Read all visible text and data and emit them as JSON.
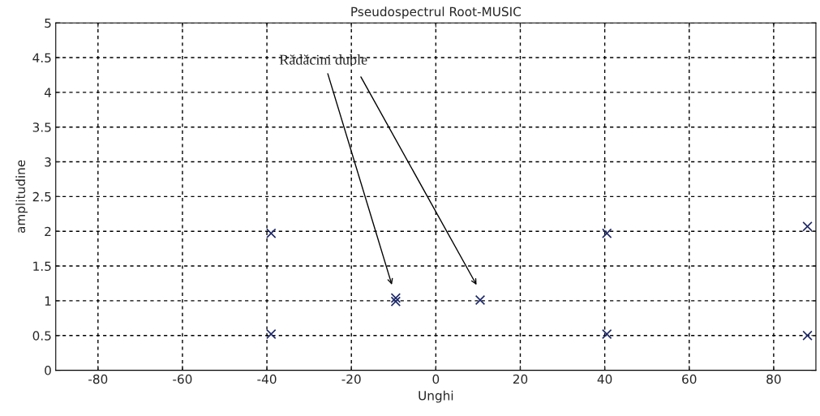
{
  "chart_data": {
    "type": "scatter",
    "title": "Pseudospectrul Root-MUSIC",
    "xlabel": "Unghi",
    "ylabel": "amplitudine",
    "x": [
      -39,
      -39,
      -9.5,
      -9.5,
      10.5,
      40.5,
      40.5,
      88,
      88
    ],
    "series": [
      {
        "color": "#1f2a6b",
        "values": [
          1.97,
          0.52,
          1.04,
          0.99,
          1.01,
          1.97,
          0.52,
          2.07,
          0.5
        ]
      }
    ],
    "marker": "cross",
    "grid": true,
    "xlim": [
      -90,
      90
    ],
    "xticks": [
      -80,
      -60,
      -40,
      -20,
      0,
      20,
      40,
      60,
      80
    ],
    "ylim": [
      0,
      5
    ],
    "yticks": [
      0,
      0.5,
      1,
      1.5,
      2,
      2.5,
      3,
      3.5,
      4,
      4.5,
      5
    ],
    "annotations": [
      "Rădăcini duble"
    ]
  }
}
